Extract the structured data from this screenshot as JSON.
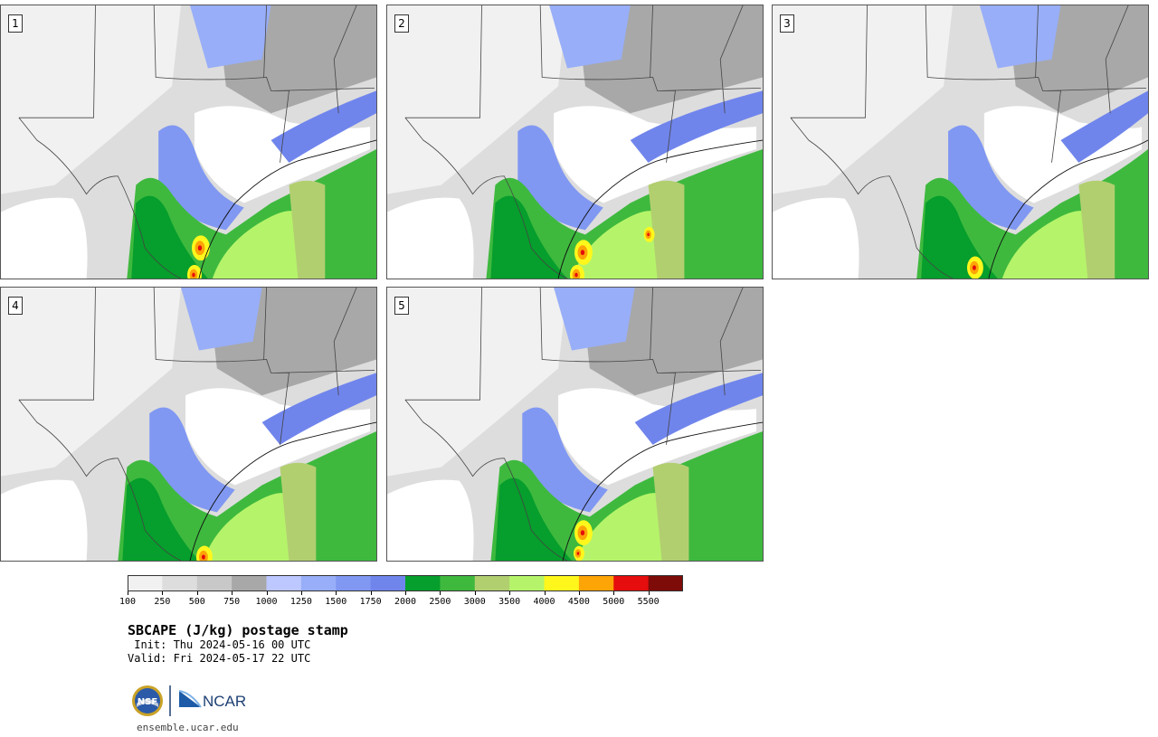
{
  "panels": [
    {
      "label": "1"
    },
    {
      "label": "2"
    },
    {
      "label": "3"
    },
    {
      "label": "4"
    },
    {
      "label": "5"
    }
  ],
  "colorbar": {
    "ticks": [
      "100",
      "250",
      "500",
      "750",
      "1000",
      "1250",
      "1500",
      "1750",
      "2000",
      "2500",
      "3000",
      "3500",
      "4000",
      "4500",
      "5000",
      "5500"
    ],
    "colors": [
      "#f1f1f1",
      "#dddddd",
      "#c8c8c8",
      "#a8a8a8",
      "#bcc8ff",
      "#98aef8",
      "#8098f2",
      "#7085ec",
      "#069e2c",
      "#3eb93e",
      "#b2cf70",
      "#b5f46a",
      "#fff71c",
      "#fda407",
      "#e50d0d",
      "#7d0b08"
    ]
  },
  "title": "SBCAPE (J/kg) postage stamp",
  "init": " Init: Thu 2024-05-16 00 UTC",
  "valid": "Valid: Fri 2024-05-17 22 UTC",
  "logos": {
    "nsf": "NSF",
    "ncar": "NCAR"
  },
  "site": "ensemble.ucar.edu"
}
